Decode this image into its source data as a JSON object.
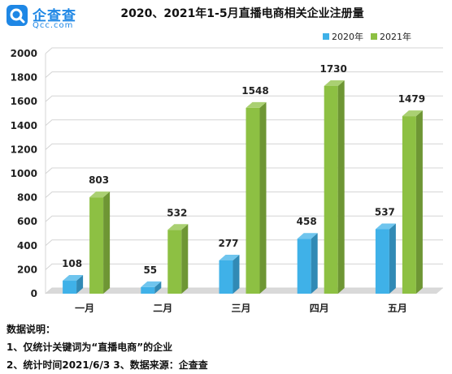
{
  "brand": {
    "name_cn": "企查查",
    "name_en": "Qcc.com",
    "color": "#1e87e5"
  },
  "chart_data": {
    "type": "bar",
    "title": "2020、2021年1-5月直播电商相关企业注册量",
    "categories": [
      "一月",
      "二月",
      "三月",
      "四月",
      "五月"
    ],
    "series": [
      {
        "name": "2020年",
        "values": [
          108,
          55,
          277,
          458,
          537
        ],
        "color": "#3fb1e8"
      },
      {
        "name": "2021年",
        "values": [
          803,
          532,
          1548,
          1730,
          1479
        ],
        "color": "#8dc043"
      }
    ],
    "ylim": [
      0,
      2000
    ],
    "yticks": [
      0,
      200,
      400,
      600,
      800,
      1000,
      1200,
      1400,
      1600,
      1800,
      2000
    ],
    "grid": true,
    "legend": "top-right",
    "xlabel": "",
    "ylabel": ""
  },
  "notes": {
    "heading": "数据说明：",
    "line1": "1、仅统计关键词为“直播电商”的企业",
    "line2": "2、统计时间2021/6/3   3、数据来源：企查查"
  }
}
